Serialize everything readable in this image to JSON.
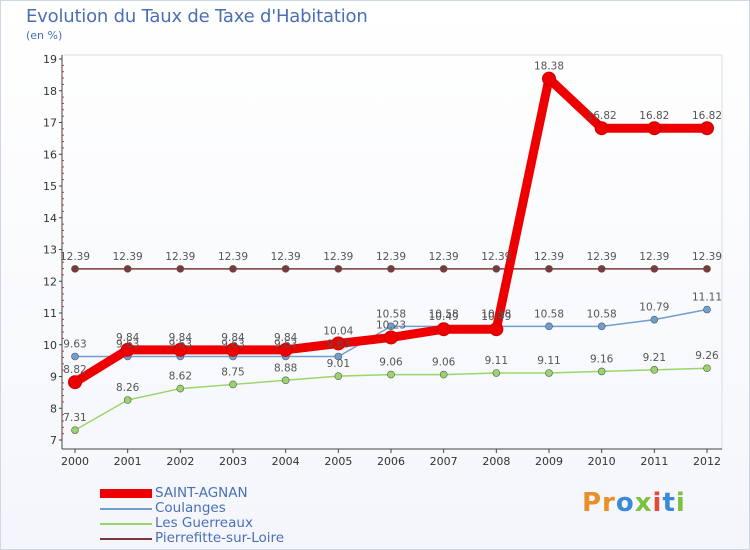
{
  "chart_data": {
    "type": "line",
    "title": "Evolution du Taux de Taxe d'Habitation",
    "subtitle": "(en %)",
    "x": [
      "2000",
      "2001",
      "2002",
      "2003",
      "2004",
      "2005",
      "2006",
      "2007",
      "2008",
      "2009",
      "2010",
      "2011",
      "2012"
    ],
    "ylim": [
      7,
      19
    ],
    "yticks": [
      7,
      8,
      9,
      10,
      11,
      12,
      13,
      14,
      15,
      16,
      17,
      18,
      19
    ],
    "series": [
      {
        "name": "SAINT-AGNAN",
        "color": "#ee0000",
        "labelColor": "#555555",
        "values": [
          8.82,
          9.84,
          9.84,
          9.84,
          9.84,
          10.04,
          10.23,
          10.49,
          10.49,
          18.38,
          16.82,
          16.82,
          16.82
        ],
        "labels": [
          "8.82",
          "9.84",
          "9.84",
          "9.84",
          "9.84",
          "10.04",
          "10.23",
          "10.49",
          "10.49",
          "18.38",
          "16.82",
          "16.82",
          "16.82"
        ]
      },
      {
        "name": "Coulanges",
        "color": "#6f9fd0",
        "labelColor": "#555555",
        "values": [
          9.63,
          9.63,
          9.63,
          9.63,
          9.63,
          9.63,
          10.58,
          10.58,
          10.58,
          10.58,
          10.58,
          10.79,
          11.11
        ],
        "labels": [
          "9.63",
          "9.63",
          "9.63",
          "9.63",
          "9.63",
          "9.63",
          "10.58",
          "10.58",
          "10.58",
          "10.58",
          "10.58",
          "10.79",
          "11.11"
        ]
      },
      {
        "name": "Les Guerreaux",
        "color": "#9cd46c",
        "labelColor": "#555555",
        "values": [
          7.31,
          8.26,
          8.62,
          8.75,
          8.88,
          9.01,
          9.06,
          9.06,
          9.11,
          9.11,
          9.16,
          9.21,
          9.26
        ],
        "labels": [
          "7.31",
          "8.26",
          "8.62",
          "8.75",
          "8.88",
          "9.01",
          "9.06",
          "9.06",
          "9.11",
          "9.11",
          "9.16",
          "9.21",
          "9.26"
        ]
      },
      {
        "name": "Pierrefitte-sur-Loire",
        "color": "#7a3a3a",
        "labelColor": "#555555",
        "values": [
          12.39,
          12.39,
          12.39,
          12.39,
          12.39,
          12.39,
          12.39,
          12.39,
          12.39,
          12.39,
          12.39,
          12.39,
          12.39
        ],
        "labels": [
          "12.39",
          "12.39",
          "12.39",
          "12.39",
          "12.39",
          "12.39",
          "12.39",
          "12.39",
          "12.39",
          "12.39",
          "12.39",
          "12.39",
          "12.39"
        ]
      }
    ],
    "legend_position": "bottom-left"
  },
  "logo": {
    "p1": "Pr",
    "p2": "o",
    "p3": "x",
    "p4": "i",
    "p5": "t",
    "p6": "i"
  },
  "colors": {
    "title": "#4a6fb5",
    "axis": "#444444",
    "grid": "#e6e6e6"
  }
}
